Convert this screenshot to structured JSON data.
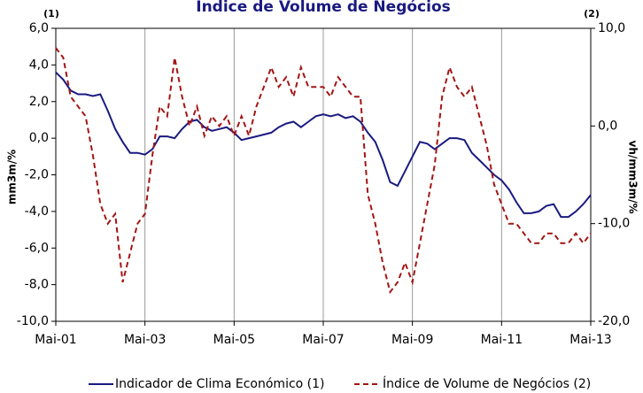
{
  "chart_data": {
    "type": "line",
    "title": "Índice de Volume de Negócios",
    "y_label": "mm3m/%",
    "y2_label": "vh/mm3m/%",
    "y_axis_note": "(1)",
    "y2_axis_note": "(2)",
    "categories": [
      "Mai-01",
      null,
      null,
      null,
      null,
      null,
      null,
      null,
      null,
      null,
      null,
      null,
      "Mai-03",
      null,
      null,
      null,
      null,
      null,
      null,
      null,
      null,
      null,
      null,
      null,
      "Mai-05",
      null,
      null,
      null,
      null,
      null,
      null,
      null,
      null,
      null,
      null,
      null,
      "Mai-07",
      null,
      null,
      null,
      null,
      null,
      null,
      null,
      null,
      null,
      null,
      null,
      "Mai-09",
      null,
      null,
      null,
      null,
      null,
      null,
      null,
      null,
      null,
      null,
      null,
      "Mai-11",
      null,
      null,
      null,
      null,
      null,
      null,
      null,
      null,
      null,
      null,
      null,
      "Mai-13"
    ],
    "series": [
      {
        "name": "Indicador de Clima Económico (1)",
        "color": "#1a1a80",
        "dashed": false,
        "values": [
          3.6,
          3.2,
          2.6,
          2.4,
          2.4,
          2.3,
          2.4,
          1.5,
          0.5,
          -0.2,
          -0.8,
          -0.8,
          -0.9,
          -0.6,
          0.1,
          0.1,
          0.0,
          0.5,
          0.9,
          1.0,
          0.6,
          0.4,
          0.5,
          0.6,
          0.3,
          -0.1,
          0.0,
          0.1,
          0.2,
          0.3,
          0.6,
          0.8,
          0.9,
          0.6,
          0.9,
          1.2,
          1.3,
          1.2,
          1.3,
          1.1,
          1.2,
          0.9,
          0.3,
          -0.2,
          -1.2,
          -2.4,
          -2.6,
          -1.8,
          -1.0,
          -0.2,
          -0.3,
          -0.6,
          -0.3,
          0.0,
          0.0,
          -0.1,
          -0.8,
          -1.2,
          -1.6,
          -2.0,
          -2.3,
          -2.8,
          -3.5,
          -4.1,
          -4.1,
          -4.0,
          -3.7,
          -3.6,
          -4.3,
          -4.3,
          -4.0,
          -3.6,
          -3.1
        ]
      },
      {
        "name": "Índice de Volume de Negócios (2)",
        "color": "#a31515",
        "dashed": true,
        "axis": "y2",
        "values": [
          8,
          7,
          3,
          2,
          1,
          -3,
          -8,
          -10,
          -9,
          -16,
          -13,
          -10,
          -9,
          -3,
          2,
          1,
          7,
          3,
          0,
          2,
          -1,
          1,
          0,
          1,
          -1,
          1,
          -1,
          2,
          4,
          6,
          4,
          5,
          3,
          6,
          4,
          4,
          4,
          3,
          5,
          4,
          3,
          3,
          -7,
          -10,
          -14,
          -17,
          -16,
          -14,
          -16,
          -12,
          -8,
          -4,
          3,
          6,
          4,
          3,
          4,
          1,
          -2,
          -6,
          -8,
          -10,
          -10,
          -11,
          -12,
          -12,
          -11,
          -11,
          -12,
          -12,
          -11,
          -12,
          -11
        ]
      }
    ],
    "ylim": [
      -10,
      6
    ],
    "yticks": [
      {
        "value": -10,
        "label": "-10,0"
      },
      {
        "value": -8,
        "label": "-8,0"
      },
      {
        "value": -6,
        "label": "-6,0"
      },
      {
        "value": -4,
        "label": "-4,0"
      },
      {
        "value": -2,
        "label": "-2,0"
      },
      {
        "value": 0,
        "label": "0,0"
      },
      {
        "value": 2,
        "label": "2,0"
      },
      {
        "value": 4,
        "label": "4,0"
      },
      {
        "value": 6,
        "label": "6,0"
      }
    ],
    "y2lim": [
      -20,
      10
    ],
    "y2ticks": [
      {
        "value": -20,
        "label": "-20,0"
      },
      {
        "value": -10,
        "label": "-10,0"
      },
      {
        "value": 0,
        "label": "0,0"
      },
      {
        "value": 10,
        "label": "10,0"
      }
    ],
    "grid": true,
    "legend": "bottom"
  }
}
